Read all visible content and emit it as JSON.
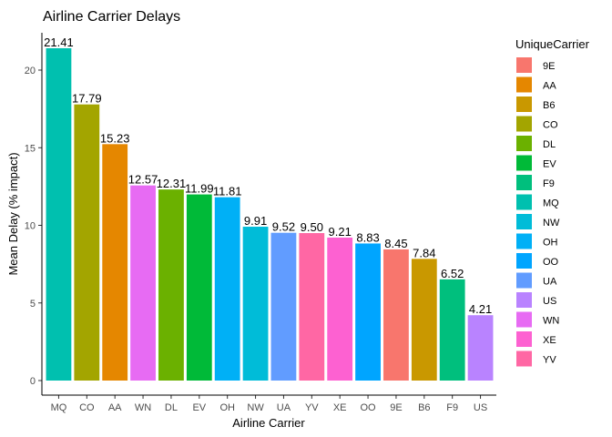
{
  "chart_data": {
    "type": "bar",
    "title": "Airline Carrier Delays",
    "xlabel": "Airline Carrier",
    "ylabel": "Mean Delay (% impact)",
    "ylim": [
      0,
      22
    ],
    "yticks": [
      0,
      5,
      10,
      15,
      20
    ],
    "grid": false,
    "legend_position": "right",
    "categories": [
      "MQ",
      "CO",
      "AA",
      "WN",
      "DL",
      "EV",
      "OH",
      "NW",
      "UA",
      "YV",
      "XE",
      "OO",
      "9E",
      "B6",
      "F9",
      "US"
    ],
    "values": [
      21.41,
      17.79,
      15.23,
      12.57,
      12.31,
      11.99,
      11.81,
      9.91,
      9.52,
      9.5,
      9.21,
      8.83,
      8.45,
      7.84,
      6.52,
      4.21
    ],
    "data_labels": [
      "21.41",
      "17.79",
      "15.23",
      "12.57",
      "12.31",
      "11.99",
      "11.81",
      "9.91",
      "9.52",
      "9.50",
      "9.21",
      "8.83",
      "8.45",
      "7.84",
      "6.52",
      "4.21"
    ],
    "legend": {
      "title": "UniqueCarrier",
      "entries": [
        "9E",
        "AA",
        "B6",
        "CO",
        "DL",
        "EV",
        "F9",
        "MQ",
        "NW",
        "OH",
        "OO",
        "UA",
        "US",
        "WN",
        "XE",
        "YV"
      ],
      "colors": {
        "9E": "#F8766D",
        "AA": "#E58700",
        "B6": "#C99800",
        "CO": "#A3A500",
        "DL": "#6BB100",
        "EV": "#00BA38",
        "F9": "#00BF7D",
        "MQ": "#00C0AF",
        "NW": "#00BCD8",
        "OH": "#00B0F6",
        "OO": "#00A5FF",
        "UA": "#619CFF",
        "US": "#B983FF",
        "WN": "#E76BF3",
        "XE": "#FD61D1",
        "YV": "#FF67A4"
      }
    }
  }
}
